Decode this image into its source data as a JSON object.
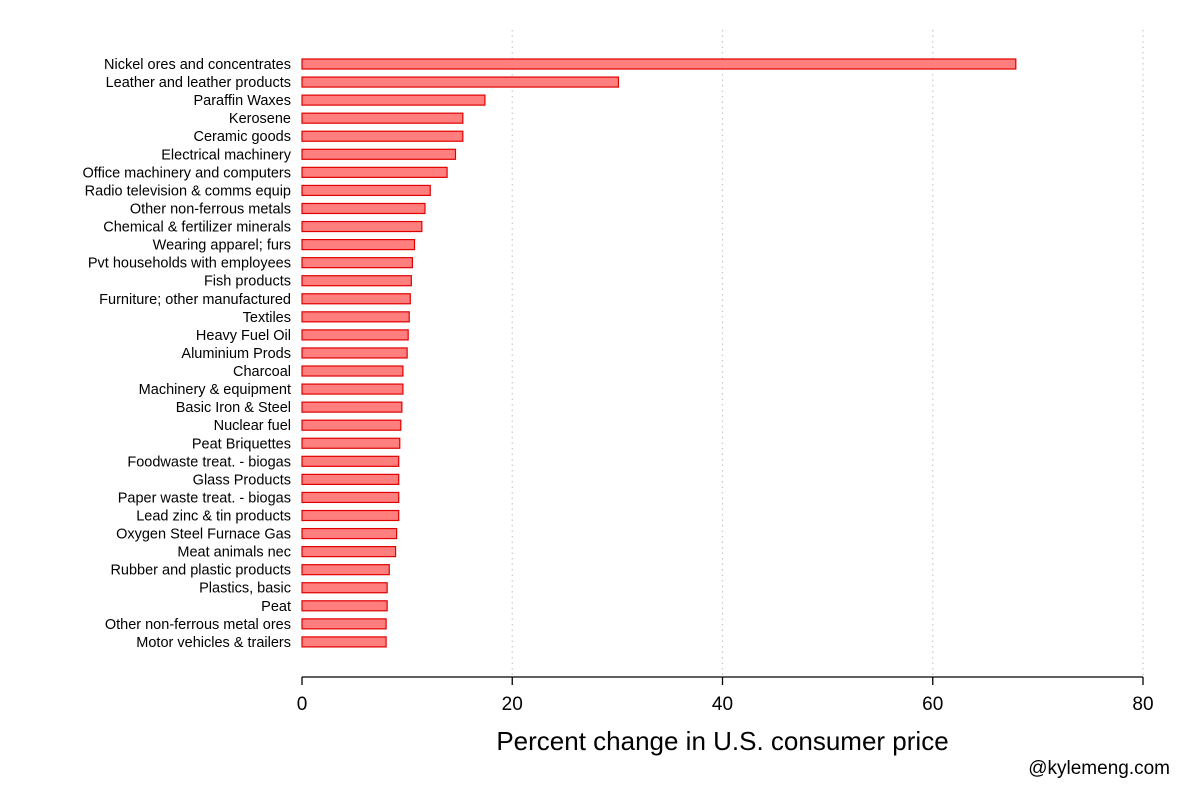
{
  "chart_data": {
    "type": "bar",
    "orientation": "horizontal",
    "categories": [
      "Nickel ores and concentrates",
      "Leather and leather products",
      "Paraffin Waxes",
      "Kerosene",
      "Ceramic goods",
      "Electrical machinery",
      "Office machinery and computers",
      "Radio television & comms equip",
      "Other non-ferrous metals",
      "Chemical & fertilizer minerals",
      "Wearing apparel; furs",
      "Pvt households with employees",
      "Fish products",
      "Furniture; other manufactured",
      "Textiles",
      "Heavy Fuel Oil",
      "Aluminium Prods",
      "Charcoal",
      "Machinery & equipment",
      "Basic Iron & Steel",
      "Nuclear fuel",
      "Peat Briquettes",
      "Foodwaste treat. - biogas",
      "Glass Products",
      "Paper waste treat. - biogas",
      "Lead zinc & tin products",
      "Oxygen Steel Furnace Gas",
      "Meat animals nec",
      "Rubber and plastic products",
      "Plastics, basic",
      "Peat",
      "Other non-ferrous metal ores",
      "Motor vehicles & trailers"
    ],
    "values": [
      67.9,
      30.1,
      17.4,
      15.3,
      15.3,
      14.6,
      13.8,
      12.2,
      11.7,
      11.4,
      10.7,
      10.5,
      10.4,
      10.3,
      10.2,
      10.1,
      10.0,
      9.6,
      9.6,
      9.5,
      9.4,
      9.3,
      9.2,
      9.2,
      9.2,
      9.2,
      9.0,
      8.9,
      8.3,
      8.1,
      8.1,
      8.0,
      8.0
    ],
    "title": "",
    "xlabel": "Percent change in U.S. consumer price",
    "ylabel": "",
    "xlim": [
      0,
      80
    ],
    "xticks": [
      0,
      20,
      40,
      60,
      80
    ],
    "xtick_labels": [
      "0",
      "20",
      "40",
      "60",
      "80"
    ],
    "grid": "vertical dotted",
    "bar_fill": "#ff7f7f",
    "bar_stroke": "#e00000"
  },
  "credit": "@kylemeng.com"
}
